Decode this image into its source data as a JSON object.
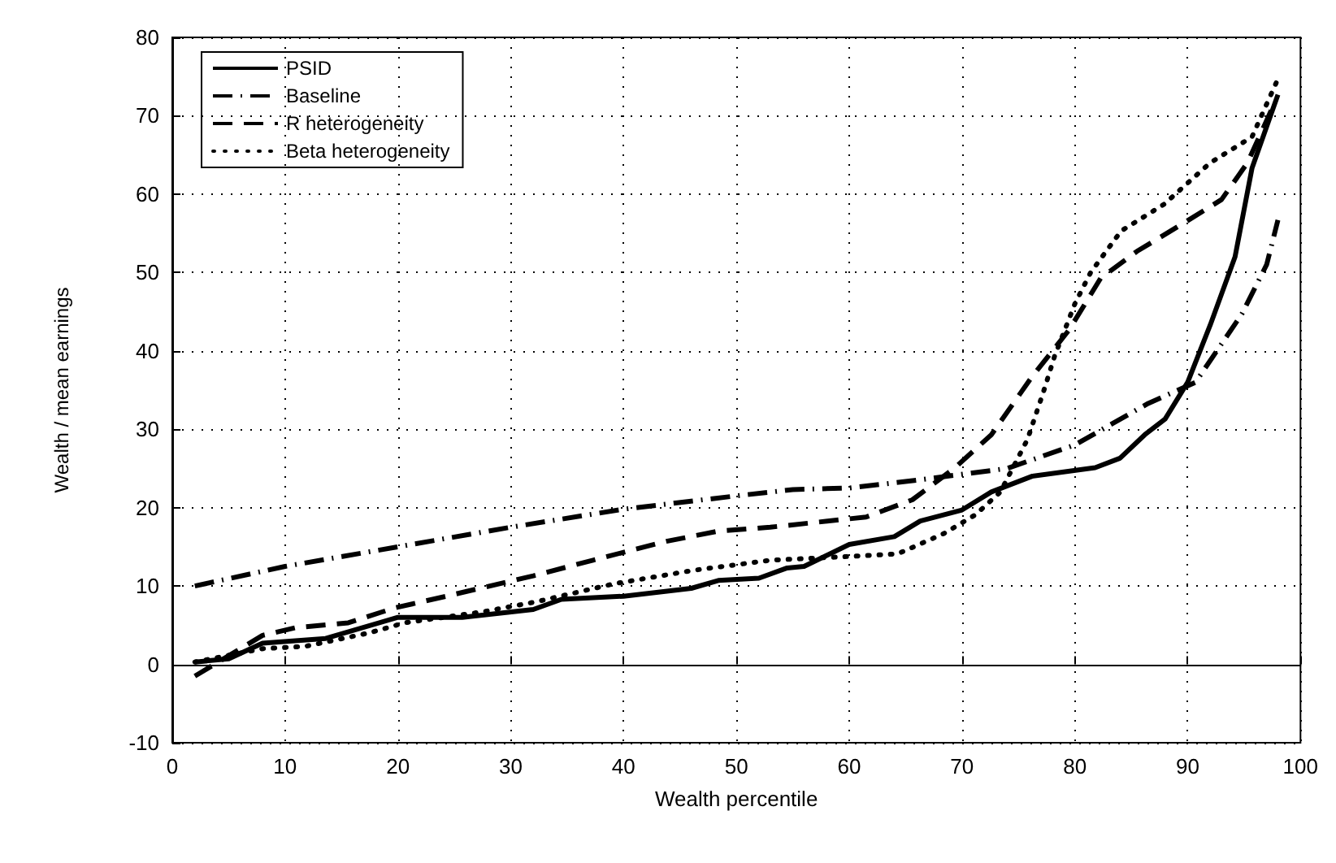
{
  "chart_data": {
    "type": "line",
    "xlabel": "Wealth percentile",
    "ylabel": "Wealth / mean earnings",
    "xlim": [
      0,
      100
    ],
    "ylim": [
      -10,
      80
    ],
    "xticks": [
      0,
      10,
      20,
      30,
      40,
      50,
      60,
      70,
      80,
      90,
      100
    ],
    "yticks": [
      -10,
      0,
      10,
      20,
      30,
      40,
      50,
      60,
      70,
      80
    ],
    "grid": true,
    "legend": "top left",
    "marker": "none",
    "series": [
      {
        "name": "PSID",
        "color": "#000000",
        "line_style": "solid",
        "x": [
          2,
          5,
          8,
          13.6,
          20,
          25.7,
          32,
          34.5,
          40,
          46,
          48.4,
          52,
          54.5,
          56,
          60,
          64,
          66.3,
          70,
          72.6,
          76.2,
          81.8,
          84,
          86.2,
          88,
          90,
          92,
          94.2,
          95.7,
          98
        ],
        "values": [
          0.3,
          0.7,
          2.7,
          3.3,
          6,
          6,
          7,
          8.3,
          8.7,
          9.7,
          10.7,
          11,
          12.3,
          12.5,
          15.3,
          16.3,
          18.3,
          19.7,
          22,
          24,
          25.1,
          26.3,
          29.3,
          31.3,
          36,
          43.3,
          52,
          63.3,
          72.7
        ]
      },
      {
        "name": "Baseline",
        "color": "#000000",
        "line_style": "dashdot",
        "x": [
          2,
          10,
          20,
          30,
          40,
          50,
          55,
          60,
          66,
          74,
          80,
          86.5,
          90.7,
          94.8,
          97,
          98
        ],
        "values": [
          10,
          12.5,
          15,
          17.5,
          19.8,
          21.5,
          22.3,
          22.5,
          23.5,
          25,
          28,
          33.3,
          36,
          44.7,
          51,
          56.7
        ]
      },
      {
        "name": "R heterogeneity",
        "color": "#000000",
        "line_style": "dashed",
        "x": [
          2,
          8,
          11,
          15.6,
          19.7,
          24.3,
          32,
          37.3,
          43.8,
          48.4,
          53,
          61.5,
          65.6,
          69.3,
          72.6,
          76.2,
          79.5,
          82.3,
          85.5,
          89.3,
          93,
          95.3,
          97.6
        ],
        "values": [
          -1.5,
          3.7,
          4.7,
          5.3,
          7.2,
          8.7,
          11.3,
          13.3,
          15.7,
          17,
          17.5,
          18.8,
          21,
          25,
          29.3,
          36.7,
          42.7,
          49.3,
          52.7,
          56,
          59.3,
          64,
          71.3
        ]
      },
      {
        "name": "Beta heterogeneity",
        "color": "#000000",
        "line_style": "dotted",
        "x": [
          2,
          8,
          11.8,
          17.4,
          20.6,
          27.5,
          32.3,
          39.2,
          46.2,
          53.1,
          59,
          64.3,
          68.4,
          71.2,
          73.4,
          75.8,
          77.2,
          78.2,
          80,
          81.4,
          84.1,
          87.9,
          92,
          95.7,
          98
        ],
        "values": [
          0.3,
          2,
          2.3,
          4,
          5.3,
          6.7,
          8,
          10.3,
          12,
          13.3,
          13.7,
          14.1,
          16.7,
          19.1,
          22,
          28.7,
          34.7,
          39.3,
          46,
          50,
          55.3,
          58.7,
          64,
          67.3,
          74.7
        ]
      }
    ]
  }
}
